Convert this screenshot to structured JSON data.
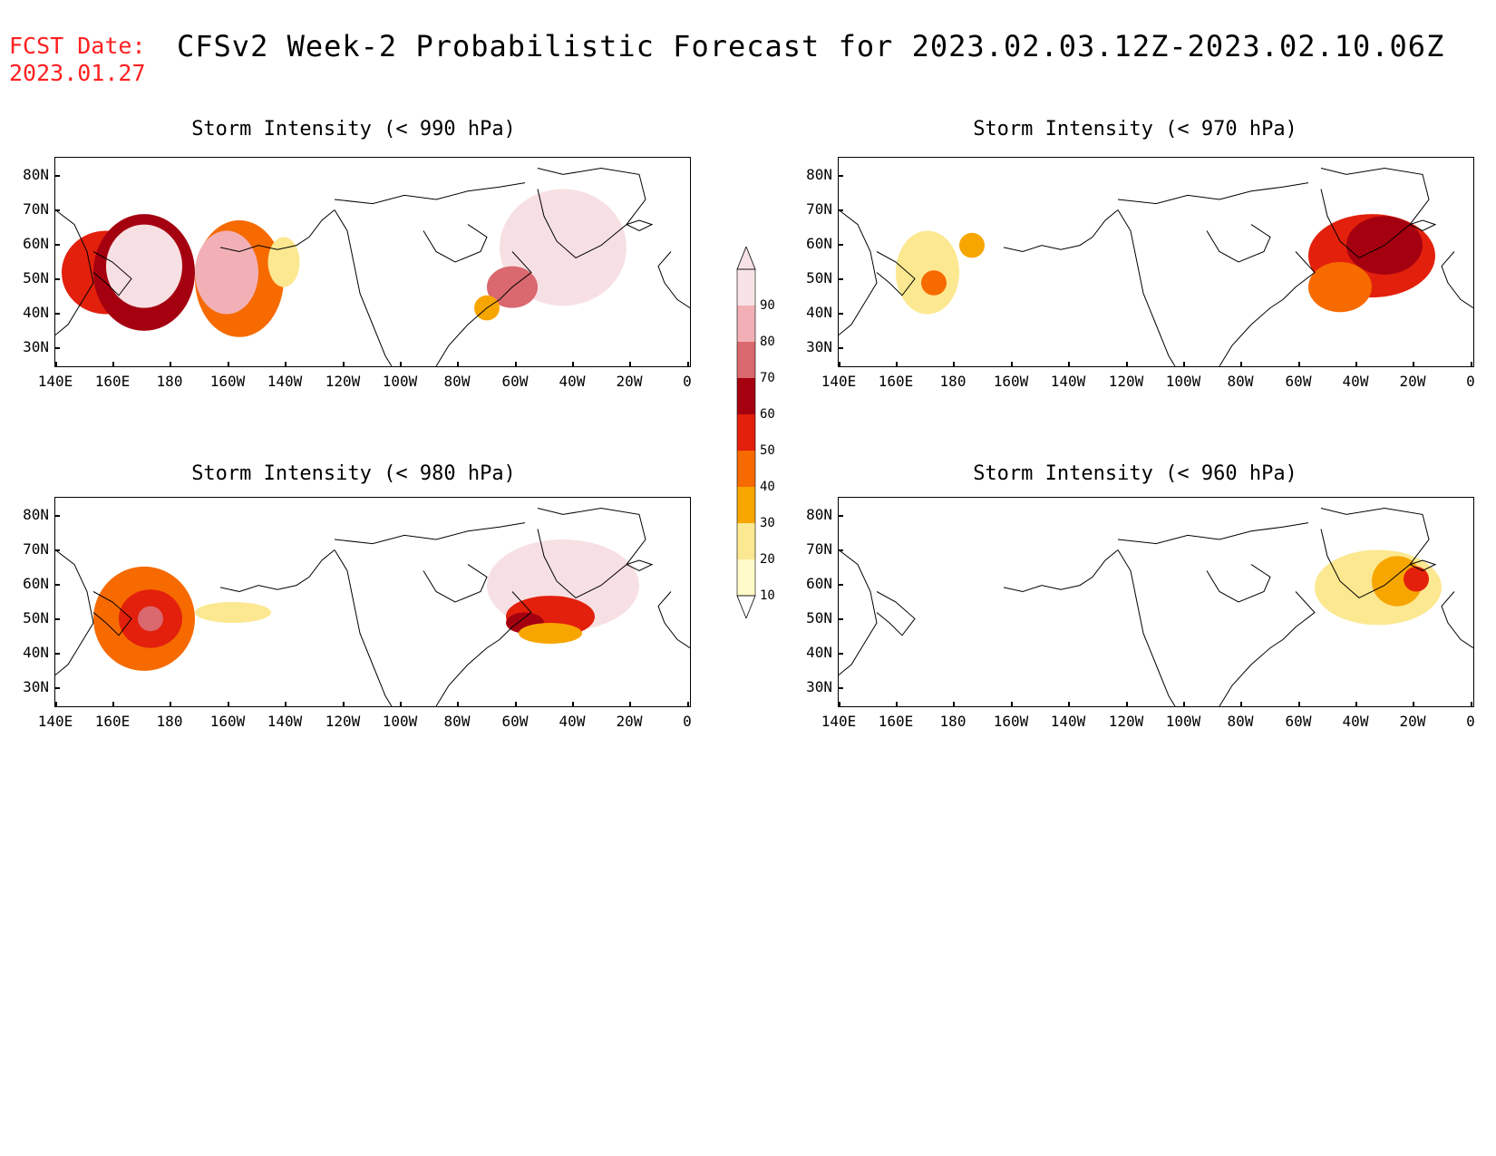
{
  "header": {
    "fcst_label": "FCST Date:",
    "fcst_date": "2023.01.27",
    "title": "CFSv2 Week-2 Probabilistic Forecast for 2023.02.03.12Z-2023.02.10.06Z"
  },
  "axes": {
    "lat_labels": [
      "80N",
      "70N",
      "60N",
      "50N",
      "40N",
      "30N"
    ],
    "lon_labels": [
      "140E",
      "160E",
      "180",
      "160W",
      "140W",
      "120W",
      "100W",
      "80W",
      "60W",
      "40W",
      "20W",
      "0"
    ]
  },
  "colorbar": {
    "labels": [
      "90",
      "80",
      "70",
      "60",
      "50",
      "40",
      "30",
      "20",
      "10"
    ],
    "colors": [
      "#f7e3e6",
      "#f2b0b6",
      "#d9686f",
      "#a50010",
      "#e2200c",
      "#f66a00",
      "#f7a600",
      "#fce890",
      "#fffac8"
    ]
  },
  "panels": [
    {
      "title": "Storm Intensity (< 990 hPa)",
      "blobs": [
        {
          "x": "0.08",
          "y": "0.55",
          "rx": "0.07",
          "ry": "0.2",
          "lvl": 4
        },
        {
          "x": "0.14",
          "y": "0.55",
          "rx": "0.08",
          "ry": "0.28",
          "lvl": 3
        },
        {
          "x": "0.14",
          "y": "0.52",
          "rx": "0.06",
          "ry": "0.2",
          "lvl": 0
        },
        {
          "x": "0.29",
          "y": "0.58",
          "rx": "0.07",
          "ry": "0.28",
          "lvl": 5
        },
        {
          "x": "0.27",
          "y": "0.55",
          "rx": "0.05",
          "ry": "0.2",
          "lvl": 1
        },
        {
          "x": "0.36",
          "y": "0.5",
          "rx": "0.025",
          "ry": "0.12",
          "lvl": 7
        },
        {
          "x": "0.8",
          "y": "0.43",
          "rx": "0.1",
          "ry": "0.28",
          "lvl": 0
        },
        {
          "x": "0.72",
          "y": "0.62",
          "rx": "0.04",
          "ry": "0.1",
          "lvl": 2
        },
        {
          "x": "0.68",
          "y": "0.72",
          "rx": "0.02",
          "ry": "0.06",
          "lvl": 6
        }
      ]
    },
    {
      "title": "Storm Intensity (< 970 hPa)",
      "blobs": [
        {
          "x": "0.14",
          "y": "0.55",
          "rx": "0.05",
          "ry": "0.2",
          "lvl": 7
        },
        {
          "x": "0.15",
          "y": "0.6",
          "rx": "0.02",
          "ry": "0.06",
          "lvl": 5
        },
        {
          "x": "0.21",
          "y": "0.42",
          "rx": "0.02",
          "ry": "0.06",
          "lvl": 6
        },
        {
          "x": "0.84",
          "y": "0.47",
          "rx": "0.1",
          "ry": "0.2",
          "lvl": 4
        },
        {
          "x": "0.86",
          "y": "0.42",
          "rx": "0.06",
          "ry": "0.14",
          "lvl": 3
        },
        {
          "x": "0.79",
          "y": "0.62",
          "rx": "0.05",
          "ry": "0.12",
          "lvl": 5
        }
      ]
    },
    {
      "title": "Storm Intensity (< 980 hPa)",
      "blobs": [
        {
          "x": "0.14",
          "y": "0.58",
          "rx": "0.08",
          "ry": "0.25",
          "lvl": 5
        },
        {
          "x": "0.15",
          "y": "0.58",
          "rx": "0.05",
          "ry": "0.14",
          "lvl": 4
        },
        {
          "x": "0.15",
          "y": "0.58",
          "rx": "0.02",
          "ry": "0.06",
          "lvl": 2
        },
        {
          "x": "0.28",
          "y": "0.55",
          "rx": "0.06",
          "ry": "0.05",
          "lvl": 7
        },
        {
          "x": "0.8",
          "y": "0.42",
          "rx": "0.12",
          "ry": "0.22",
          "lvl": 0
        },
        {
          "x": "0.78",
          "y": "0.57",
          "rx": "0.07",
          "ry": "0.1",
          "lvl": 4
        },
        {
          "x": "0.74",
          "y": "0.6",
          "rx": "0.03",
          "ry": "0.05",
          "lvl": 3
        },
        {
          "x": "0.78",
          "y": "0.65",
          "rx": "0.05",
          "ry": "0.05",
          "lvl": 6
        }
      ]
    },
    {
      "title": "Storm Intensity (< 960 hPa)",
      "blobs": [
        {
          "x": "0.85",
          "y": "0.43",
          "rx": "0.1",
          "ry": "0.18",
          "lvl": 7
        },
        {
          "x": "0.88",
          "y": "0.4",
          "rx": "0.04",
          "ry": "0.12",
          "lvl": 6
        },
        {
          "x": "0.91",
          "y": "0.39",
          "rx": "0.02",
          "ry": "0.06",
          "lvl": 4
        }
      ]
    }
  ]
}
